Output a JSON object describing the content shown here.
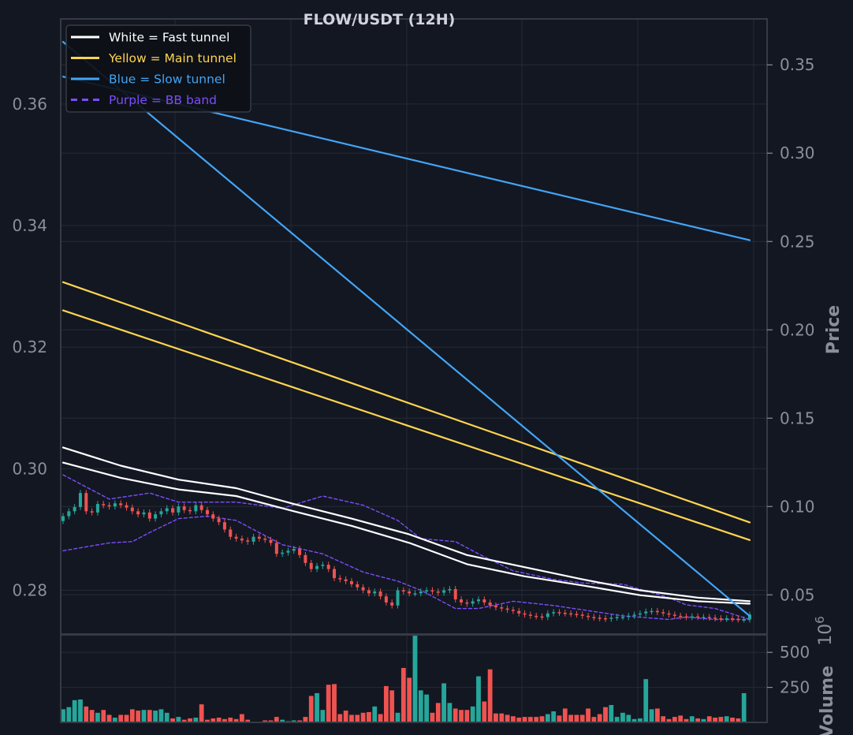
{
  "colors": {
    "background": "#131722",
    "frame": "#363a45",
    "grid": "#262a35",
    "tick_text": "#8a8f99",
    "title_text": "#d1d4dc",
    "white_tunnel": "#ffffff",
    "yellow_tunnel": "#ffd54f",
    "blue_tunnel": "#42a5f5",
    "purple_bb": "#7c4dff",
    "up": "#26a69a",
    "down": "#ef5350"
  },
  "chart_data": {
    "type": "line",
    "title": "FLOW/USDT (12H)",
    "legend": {
      "placement": "top-left",
      "entries": [
        {
          "label": "White = Fast tunnel",
          "color": "#ffffff",
          "dashed": false
        },
        {
          "label": "Yellow = Main tunnel",
          "color": "#ffd54f",
          "dashed": false
        },
        {
          "label": "Blue = Slow tunnel",
          "color": "#42a5f5",
          "dashed": false
        },
        {
          "label": "Purple = BB band",
          "color": "#7c4dff",
          "dashed": true
        }
      ]
    },
    "grid": true,
    "n_bars": 120,
    "price_panel": {
      "left_axis": {
        "ticks": [
          0.28,
          0.3,
          0.32,
          0.34,
          0.36
        ],
        "tick_labels": [
          "0.28",
          "0.30",
          "0.32",
          "0.34",
          "0.36"
        ],
        "ylim": [
          0.2728,
          0.374
        ]
      },
      "right_axis": {
        "label": "Price",
        "ticks": [
          0.05,
          0.1,
          0.15,
          0.2,
          0.25,
          0.3,
          0.35
        ],
        "tick_labels": [
          "0.05",
          "0.10",
          "0.15",
          "0.20",
          "0.25",
          "0.30",
          "0.35"
        ],
        "ylim": [
          0.0278,
          0.376
        ]
      },
      "series": [
        {
          "name": "White = Fast tunnel",
          "axis": "left",
          "color": "#ffffff",
          "x": [
            0,
            10,
            20,
            30,
            40,
            50,
            60,
            70,
            80,
            90,
            100,
            110,
            119
          ],
          "values": [
            0.3035,
            0.3005,
            0.2982,
            0.2968,
            0.2942,
            0.2918,
            0.2892,
            0.2858,
            0.2838,
            0.2818,
            0.28,
            0.2788,
            0.2782
          ]
        },
        {
          "name": "White = Fast tunnel",
          "axis": "left",
          "color": "#ffffff",
          "x": [
            0,
            10,
            20,
            30,
            40,
            50,
            60,
            70,
            80,
            90,
            100,
            110,
            119
          ],
          "values": [
            0.301,
            0.2985,
            0.2966,
            0.2955,
            0.293,
            0.2906,
            0.2878,
            0.2843,
            0.2823,
            0.2808,
            0.2792,
            0.2782,
            0.2778
          ]
        },
        {
          "name": "Yellow = Main tunnel",
          "axis": "right",
          "color": "#ffd54f",
          "x": [
            0,
            119
          ],
          "values": [
            0.227,
            0.091
          ]
        },
        {
          "name": "Yellow = Main tunnel",
          "axis": "right",
          "color": "#ffd54f",
          "x": [
            0,
            119
          ],
          "values": [
            0.211,
            0.081
          ]
        },
        {
          "name": "Blue = Slow tunnel",
          "axis": "right",
          "color": "#42a5f5",
          "x": [
            0,
            119
          ],
          "values": [
            0.363,
            0.038
          ]
        },
        {
          "name": "Blue = Slow tunnel",
          "axis": "left",
          "color": "#42a5f5",
          "x": [
            0,
            119
          ],
          "values": [
            0.3645,
            0.3376
          ]
        },
        {
          "name": "Purple = BB band",
          "axis": "left",
          "color": "#7c4dff",
          "dashed": true,
          "x": [
            0,
            8,
            15,
            20,
            30,
            38,
            45,
            52,
            58,
            62,
            68,
            72,
            78,
            85,
            90,
            97,
            105,
            108,
            113,
            119
          ],
          "values": [
            0.299,
            0.295,
            0.296,
            0.2945,
            0.2945,
            0.2935,
            0.2955,
            0.294,
            0.2915,
            0.2885,
            0.288,
            0.286,
            0.2832,
            0.2818,
            0.2812,
            0.281,
            0.2788,
            0.2776,
            0.277,
            0.2752
          ]
        },
        {
          "name": "Purple = BB band",
          "axis": "left",
          "color": "#7c4dff",
          "dashed": true,
          "x": [
            0,
            8,
            12,
            15,
            20,
            25,
            30,
            38,
            45,
            52,
            58,
            62,
            68,
            72,
            78,
            85,
            90,
            97,
            105,
            108,
            113,
            119
          ],
          "values": [
            0.2865,
            0.2878,
            0.288,
            0.2895,
            0.2918,
            0.2922,
            0.2915,
            0.2875,
            0.286,
            0.283,
            0.2815,
            0.28,
            0.277,
            0.277,
            0.2782,
            0.2775,
            0.2768,
            0.2758,
            0.2752,
            0.2756,
            0.2752,
            0.2752
          ]
        }
      ],
      "candles": {
        "axis": "left",
        "close": [
          0.2922,
          0.293,
          0.2937,
          0.296,
          0.293,
          0.2928,
          0.2942,
          0.294,
          0.2938,
          0.2943,
          0.294,
          0.2936,
          0.293,
          0.2925,
          0.2928,
          0.2918,
          0.2925,
          0.293,
          0.2935,
          0.2928,
          0.2938,
          0.2932,
          0.293,
          0.294,
          0.2932,
          0.2925,
          0.2918,
          0.2912,
          0.29,
          0.2888,
          0.2885,
          0.2882,
          0.288,
          0.2888,
          0.2885,
          0.2883,
          0.2878,
          0.286,
          0.2862,
          0.2865,
          0.2868,
          0.2858,
          0.2845,
          0.2835,
          0.284,
          0.2842,
          0.2835,
          0.282,
          0.2818,
          0.2815,
          0.281,
          0.2805,
          0.28,
          0.2795,
          0.2798,
          0.279,
          0.278,
          0.2775,
          0.28,
          0.2798,
          0.2795,
          0.2795,
          0.2798,
          0.28,
          0.2798,
          0.2796,
          0.28,
          0.2802,
          0.2785,
          0.278,
          0.2778,
          0.2782,
          0.2785,
          0.278,
          0.2775,
          0.2772,
          0.277,
          0.2768,
          0.2766,
          0.2762,
          0.276,
          0.2758,
          0.2757,
          0.2756,
          0.2762,
          0.2764,
          0.2763,
          0.2762,
          0.2761,
          0.276,
          0.2758,
          0.2756,
          0.2755,
          0.2754,
          0.2753,
          0.2755,
          0.2756,
          0.2756,
          0.2758,
          0.276,
          0.2762,
          0.2765,
          0.2766,
          0.2764,
          0.2762,
          0.276,
          0.2758,
          0.2757,
          0.2756,
          0.2757,
          0.2756,
          0.2756,
          0.2755,
          0.2754,
          0.2753,
          0.2754,
          0.2753,
          0.2752,
          0.2752,
          0.276
        ]
      }
    },
    "volume_panel": {
      "axis_label": "Volume",
      "axis_multiplier": "10^6",
      "ticks": [
        250,
        500
      ],
      "tick_labels": [
        "250",
        "500"
      ],
      "ylim": [
        0,
        625
      ],
      "values": [
        95,
        110,
        160,
        165,
        115,
        90,
        70,
        90,
        55,
        35,
        55,
        55,
        95,
        85,
        90,
        90,
        85,
        95,
        70,
        30,
        40,
        20,
        30,
        35,
        130,
        20,
        30,
        35,
        25,
        35,
        25,
        60,
        20,
        5,
        5,
        15,
        15,
        40,
        20,
        10,
        15,
        15,
        40,
        190,
        210,
        90,
        270,
        275,
        60,
        85,
        55,
        55,
        70,
        75,
        115,
        60,
        260,
        230,
        70,
        390,
        320,
        620,
        230,
        200,
        70,
        140,
        280,
        140,
        100,
        90,
        90,
        115,
        330,
        150,
        380,
        65,
        65,
        55,
        45,
        35,
        40,
        40,
        40,
        45,
        60,
        80,
        50,
        100,
        55,
        55,
        55,
        100,
        40,
        60,
        110,
        125,
        40,
        70,
        55,
        25,
        30,
        310,
        95,
        100,
        45,
        25,
        40,
        50,
        25,
        45,
        30,
        25,
        45,
        35,
        40,
        45,
        35,
        30,
        210
      ]
    }
  }
}
